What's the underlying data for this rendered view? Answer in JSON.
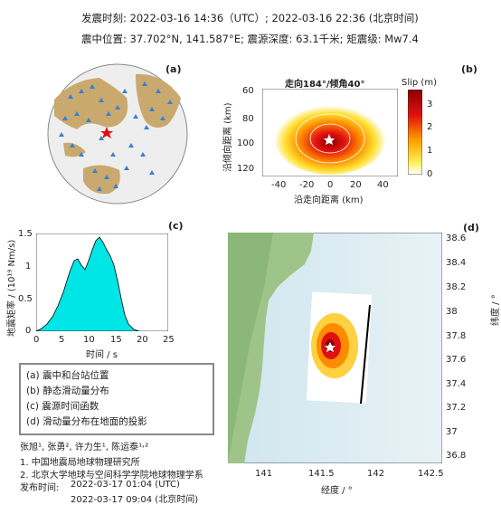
{
  "header": {
    "line1": "发震时刻: 2022-03-16 14:36（UTC）;   2022-03-16  22:36 (北京时间)",
    "line2": "震中位置: 37.702°N,  141.587°E;   震源深度: 63.1千米; 矩震级: Mw7.4"
  },
  "panel_a": {
    "label": "(a)"
  },
  "panel_b": {
    "label": "(b)",
    "title": "走向184°/倾角40°",
    "ylabel": "沿倾向距离 (km)",
    "xlabel": "沿走向距离 (km)",
    "cbar_label": "Slip (m)",
    "xticks": [
      "-40",
      "-20",
      "0",
      "20",
      "40"
    ],
    "yticks": [
      "60",
      "80",
      "100",
      "120"
    ],
    "cbar_ticks": [
      "3",
      "2",
      "1",
      "0"
    ]
  },
  "panel_c": {
    "label": "(c)",
    "ylabel": "地震矩率 / (10¹⁹ Nm/s)",
    "xlabel": "时间 / s",
    "xticks": [
      "0",
      "5",
      "10",
      "15",
      "20",
      "25"
    ],
    "yticks": [
      "1.5",
      "1",
      "0.5",
      "0"
    ]
  },
  "panel_d": {
    "label": "(d)",
    "xlabel": "经度 / °",
    "ylabel": "纬度 / °",
    "xticks": [
      "141",
      "141.5",
      "142",
      "142.5"
    ],
    "yticks": [
      "38.6",
      "38.4",
      "38.2",
      "38",
      "37.8",
      "37.6",
      "37.4",
      "37.2",
      "37",
      "36.8"
    ]
  },
  "legend": {
    "items": [
      "(a) 震中和台站位置",
      "(b) 静态滑动量分布",
      "(c) 震源时间函数",
      "(d) 滑动量分布在地面的投影"
    ]
  },
  "credits": {
    "authors": "张旭¹, 张勇², 许力生¹, 陈运泰¹˒²",
    "aff1": "1. 中国地震局地球物理研究所",
    "aff2": "2. 北京大学地球与空间科学学院地球物理学系",
    "release_label": "发布时间:",
    "release_utc": "2022-03-17  01:04 (UTC)",
    "release_bj": "2022-03-17  09:04 (北京时间)"
  },
  "colors": {
    "station": "#3a7fd5",
    "epicenter": "#e01010",
    "land": "#c9a96e",
    "stf": "#00e5e5"
  }
}
